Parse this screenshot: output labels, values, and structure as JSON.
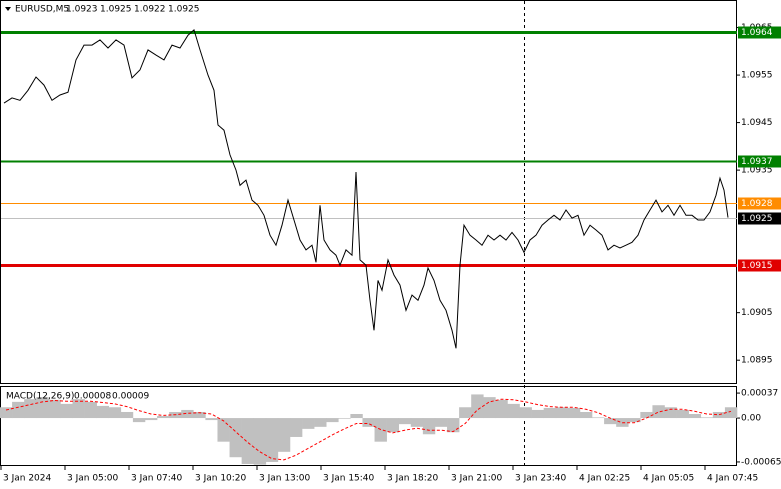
{
  "chart_data": {
    "type": "line",
    "symbol": "EURUSD,M5",
    "ohlc": [
      1.0923,
      1.0925,
      1.0922,
      1.0925
    ],
    "color": "#000000",
    "x": [
      2,
      6,
      10,
      14,
      18,
      22,
      26,
      30,
      34,
      38,
      42,
      46,
      50,
      54,
      58,
      62,
      66,
      70,
      74,
      78,
      82,
      86,
      90,
      94,
      97,
      100,
      104,
      107,
      109,
      112,
      115,
      118,
      120,
      123,
      126,
      129,
      132,
      135,
      138,
      141,
      144,
      147,
      150,
      153,
      156,
      158,
      160,
      162,
      165,
      168,
      170,
      173,
      176,
      178,
      180,
      183,
      185,
      187,
      189,
      191,
      194,
      197,
      200,
      203,
      206,
      209,
      212,
      214,
      217,
      220,
      223,
      226,
      228,
      230,
      232,
      235,
      238,
      241,
      244,
      247,
      250,
      253,
      256,
      259,
      262,
      265,
      268,
      271,
      274,
      277,
      280,
      283,
      286,
      289,
      292,
      295,
      298,
      301,
      304,
      307,
      310,
      313,
      316,
      319,
      322,
      325,
      328,
      331,
      334,
      337,
      340,
      343,
      346,
      349,
      352,
      355,
      358,
      360,
      362,
      364
    ],
    "values": [
      1.09491,
      1.09502,
      1.09497,
      1.09518,
      1.09546,
      1.09529,
      1.09497,
      1.09508,
      1.09514,
      1.09582,
      1.09613,
      1.09613,
      1.09624,
      1.09607,
      1.09624,
      1.09613,
      1.09544,
      1.09561,
      1.09603,
      1.09592,
      1.09582,
      1.09613,
      1.09607,
      1.09634,
      1.09645,
      1.09603,
      1.0955,
      1.09518,
      1.09445,
      1.09434,
      1.09382,
      1.0935,
      1.09318,
      1.09329,
      1.09287,
      1.09276,
      1.09255,
      1.09213,
      1.09192,
      1.09234,
      1.09287,
      1.09245,
      1.09203,
      1.09182,
      1.09192,
      1.09156,
      1.09276,
      1.09203,
      1.09182,
      1.09171,
      1.0915,
      1.09182,
      1.09171,
      1.09346,
      1.09161,
      1.0915,
      1.09076,
      1.09013,
      1.09118,
      1.09097,
      1.09161,
      1.09129,
      1.09108,
      1.09055,
      1.09087,
      1.09076,
      1.09108,
      1.09144,
      1.09118,
      1.09076,
      1.09055,
      1.09013,
      1.08975,
      1.0915,
      1.09234,
      1.09213,
      1.09203,
      1.09192,
      1.09213,
      1.09203,
      1.09213,
      1.09203,
      1.09219,
      1.09203,
      1.09177,
      1.09203,
      1.09213,
      1.09234,
      1.09245,
      1.09255,
      1.09245,
      1.09266,
      1.09249,
      1.09255,
      1.09213,
      1.09234,
      1.09224,
      1.09213,
      1.09182,
      1.09192,
      1.09186,
      1.09192,
      1.09198,
      1.09213,
      1.09245,
      1.09266,
      1.09287,
      1.09262,
      1.09276,
      1.09255,
      1.09276,
      1.09255,
      1.09255,
      1.09245,
      1.09245,
      1.09262,
      1.09297,
      1.09333,
      1.09308,
      1.0925
    ],
    "xlim": [
      0,
      368.5
    ],
    "ylim": [
      1.08902,
      1.09708
    ],
    "yticks": [
      1.0965,
      1.0955,
      1.0945,
      1.0935,
      1.0905,
      1.0895
    ],
    "levels": [
      {
        "value": 1.0964,
        "color": "#008000",
        "style": "thick"
      },
      {
        "value": 1.0937,
        "color": "#008000",
        "style": "medium"
      },
      {
        "value": 1.0928,
        "color": "#ff8c00",
        "style": "thin"
      },
      {
        "value": 1.0925,
        "color": "#000000",
        "style": "bid"
      },
      {
        "value": 1.0915,
        "color": "#e00000",
        "style": "thick"
      }
    ],
    "time_labels": [
      "3 Jan 2024",
      "3 Jan 05:00",
      "3 Jan 07:40",
      "3 Jan 10:20",
      "3 Jan 13:00",
      "3 Jan 15:40",
      "3 Jan 18:20",
      "3 Jan 21:00",
      "3 Jan 23:40",
      "4 Jan 02:25",
      "4 Jan 05:05",
      "4 Jan 07:45"
    ],
    "macd": {
      "type": "bar",
      "title": "MACD(12,26,9)",
      "readings": [
        8e-05,
        9e-05
      ],
      "color": "#c0c0c0",
      "signal_color": "#ff0000",
      "values": [
        0.00016,
        0.00024,
        0.00028,
        0.00031,
        0.00027,
        0.00021,
        0.00028,
        0.00024,
        0.00018,
        0.00016,
        9e-05,
        -6e-05,
        -3e-05,
        3e-05,
        9e-05,
        0.00012,
        9e-05,
        -3e-05,
        -0.00035,
        -0.00058,
        -0.00068,
        -0.00069,
        -0.00065,
        -0.0005,
        -0.00028,
        -0.00016,
        -0.00013,
        -6e-05,
        -1e-05,
        6e-05,
        -0.00013,
        -0.00035,
        -0.00021,
        -9e-05,
        -0.00013,
        -0.00024,
        -0.00013,
        -0.00021,
        0.00016,
        0.00035,
        0.00031,
        0.00027,
        0.00021,
        0.00016,
        0.00012,
        0.00015,
        0.00016,
        0.00015,
        9e-05,
        1e-05,
        -9e-05,
        -0.00013,
        -6e-05,
        9e-05,
        0.00019,
        0.00016,
        0.00012,
        6e-05,
        1e-05,
        9e-05,
        0.00016
      ],
      "signal": [
        0.00012,
        0.00016,
        0.0002,
        0.00024,
        0.00026,
        0.00025,
        0.00025,
        0.00025,
        0.00023,
        0.00021,
        0.00017,
        0.00011,
        6e-05,
        4e-05,
        5e-05,
        7e-05,
        8e-05,
        6e-05,
        -4e-05,
        -0.0002,
        -0.00036,
        -0.0005,
        -0.0006,
        -0.00062,
        -0.00055,
        -0.00045,
        -0.00035,
        -0.00025,
        -0.00016,
        -8e-05,
        -8e-05,
        -0.00017,
        -0.00022,
        -0.00018,
        -0.00015,
        -0.00018,
        -0.00018,
        -0.0002,
        -8e-05,
        0.00012,
        0.00024,
        0.00028,
        0.00027,
        0.00024,
        0.0002,
        0.00017,
        0.00016,
        0.00016,
        0.00013,
        8e-05,
        0,
        -7e-05,
        -7e-05,
        0,
        9e-05,
        0.00013,
        0.00013,
        0.0001,
        6e-05,
        5e-05,
        0.0001
      ],
      "ylim": [
        -0.00071,
        0.00046
      ],
      "yticks": [
        {
          "value": 0.00037,
          "label": "0.00037"
        },
        {
          "value": 0,
          "label": "0.00"
        },
        {
          "value": -0.00065,
          "label": "-0.00065"
        }
      ]
    }
  }
}
